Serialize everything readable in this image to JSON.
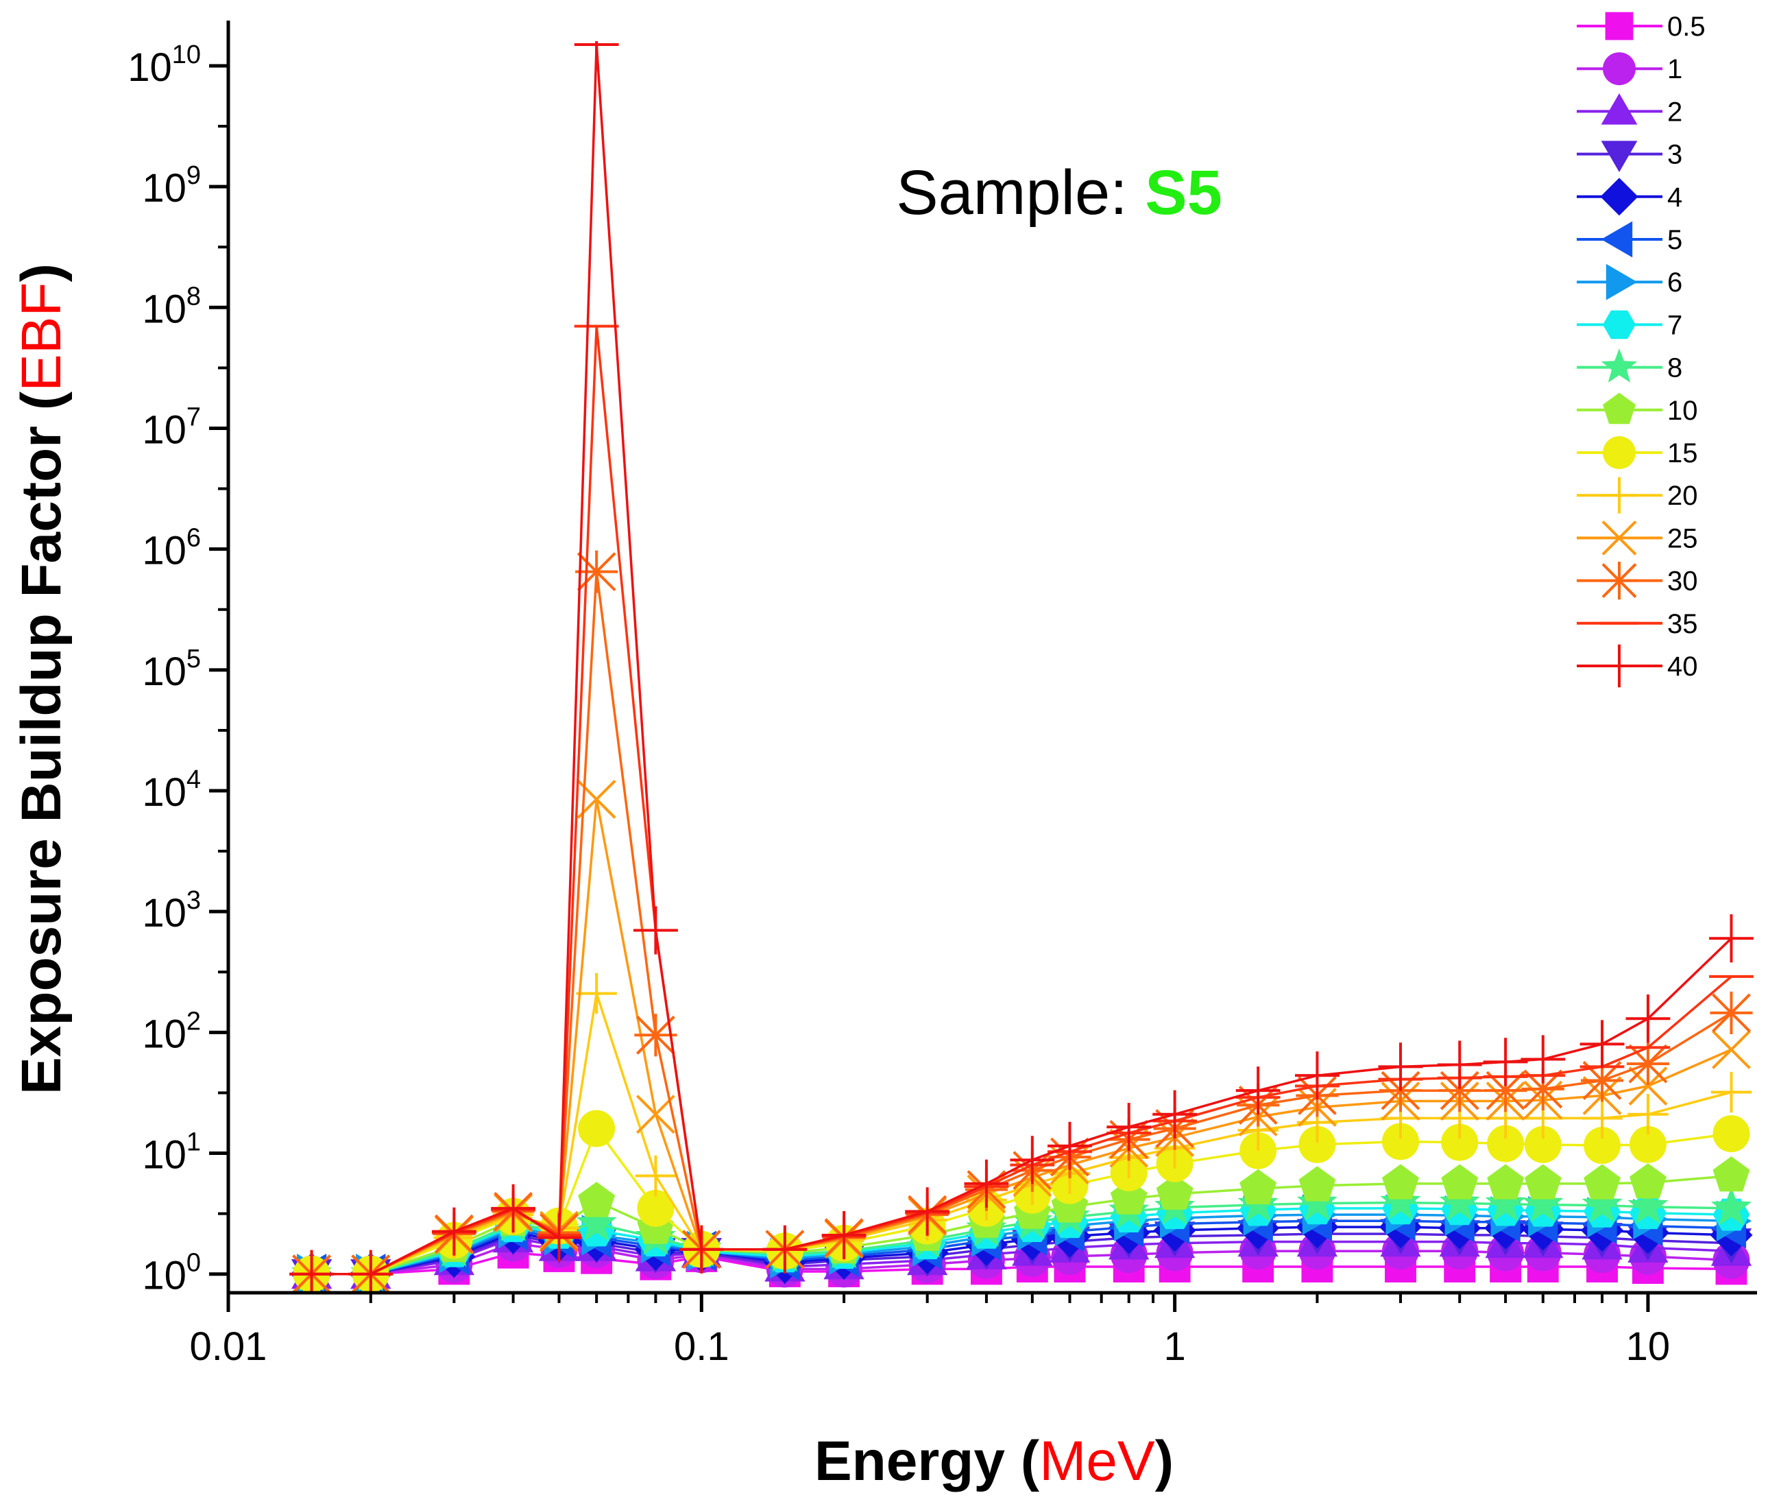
{
  "chart_data": {
    "type": "line",
    "title": "",
    "annotation": {
      "prefix": "Sample: ",
      "value": "S5",
      "value_color": "#22ee11"
    },
    "xlabel": {
      "prefix": "Energy (",
      "unit": "MeV",
      "suffix": ")",
      "unit_color": "#ff0000"
    },
    "ylabel": {
      "prefix": "Exposure Buildup Factor (",
      "unit": "EBF",
      "suffix": ")",
      "unit_color": "#ff0000"
    },
    "xscale": "log",
    "yscale": "log",
    "xlim": [
      0.01,
      17
    ],
    "ylim": [
      0.7,
      16000000000
    ],
    "x_ticks": [
      {
        "value": 0.01,
        "label": "0.01"
      },
      {
        "value": 0.1,
        "label": "0.1"
      },
      {
        "value": 1,
        "label": "1"
      },
      {
        "value": 10,
        "label": "10"
      }
    ],
    "y_ticks": [
      {
        "value": 1,
        "base": "10",
        "exp": "0"
      },
      {
        "value": 10,
        "base": "10",
        "exp": "1"
      },
      {
        "value": 100,
        "base": "10",
        "exp": "2"
      },
      {
        "value": 1000,
        "base": "10",
        "exp": "3"
      },
      {
        "value": 10000,
        "base": "10",
        "exp": "4"
      },
      {
        "value": 100000,
        "base": "10",
        "exp": "5"
      },
      {
        "value": 1000000,
        "base": "10",
        "exp": "6"
      },
      {
        "value": 10000000,
        "base": "10",
        "exp": "7"
      },
      {
        "value": 100000000,
        "base": "10",
        "exp": "8"
      },
      {
        "value": 1000000000,
        "base": "10",
        "exp": "9"
      },
      {
        "value": 10000000000,
        "base": "10",
        "exp": "10"
      }
    ],
    "grid": false,
    "legend_position": "top-right",
    "x": [
      0.015,
      0.02,
      0.03,
      0.04,
      0.05,
      0.06,
      0.08,
      0.1,
      0.15,
      0.2,
      0.3,
      0.4,
      0.5,
      0.6,
      0.8,
      1,
      1.5,
      2,
      3,
      4,
      5,
      6,
      8,
      10,
      15
    ],
    "series": [
      {
        "name": "0.5",
        "color": "#ee11ee",
        "marker": "square",
        "values": [
          1.0,
          1.0,
          1.1,
          1.5,
          1.4,
          1.35,
          1.2,
          1.4,
          1.05,
          1.05,
          1.1,
          1.1,
          1.15,
          1.15,
          1.15,
          1.15,
          1.15,
          1.15,
          1.15,
          1.15,
          1.15,
          1.15,
          1.15,
          1.12,
          1.1
        ]
      },
      {
        "name": "1",
        "color": "#bb22ee",
        "marker": "circle",
        "values": [
          1.0,
          1.0,
          1.2,
          1.8,
          1.6,
          1.6,
          1.3,
          1.45,
          1.1,
          1.1,
          1.2,
          1.3,
          1.35,
          1.4,
          1.45,
          1.5,
          1.55,
          1.55,
          1.55,
          1.55,
          1.5,
          1.5,
          1.45,
          1.4,
          1.3
        ]
      },
      {
        "name": "2",
        "color": "#8822ee",
        "marker": "triangle-up",
        "values": [
          1.0,
          1.0,
          1.3,
          2.0,
          1.7,
          1.7,
          1.4,
          1.5,
          1.15,
          1.2,
          1.3,
          1.45,
          1.55,
          1.65,
          1.75,
          1.8,
          1.85,
          1.85,
          1.85,
          1.85,
          1.8,
          1.8,
          1.75,
          1.65,
          1.55
        ]
      },
      {
        "name": "3",
        "color": "#5522dd",
        "marker": "triangle-down",
        "values": [
          1.0,
          1.0,
          1.35,
          2.1,
          1.8,
          1.8,
          1.5,
          1.5,
          1.2,
          1.3,
          1.4,
          1.6,
          1.75,
          1.85,
          2.0,
          2.05,
          2.1,
          2.15,
          2.15,
          2.1,
          2.1,
          2.05,
          2.0,
          1.9,
          1.8
        ]
      },
      {
        "name": "4",
        "color": "#1111dd",
        "marker": "diamond",
        "values": [
          1.0,
          1.0,
          1.4,
          2.2,
          1.9,
          1.9,
          1.6,
          1.55,
          1.25,
          1.35,
          1.5,
          1.75,
          1.95,
          2.05,
          2.2,
          2.3,
          2.4,
          2.45,
          2.45,
          2.4,
          2.4,
          2.35,
          2.3,
          2.2,
          2.1
        ]
      },
      {
        "name": "5",
        "color": "#1155ee",
        "marker": "triangle-left",
        "values": [
          1.0,
          1.0,
          1.45,
          2.3,
          2.0,
          2.0,
          1.7,
          1.55,
          1.3,
          1.4,
          1.6,
          1.9,
          2.1,
          2.25,
          2.45,
          2.6,
          2.7,
          2.75,
          2.75,
          2.7,
          2.7,
          2.65,
          2.6,
          2.5,
          2.4
        ]
      },
      {
        "name": "6",
        "color": "#1199ee",
        "marker": "triangle-right",
        "values": [
          1.0,
          1.0,
          1.5,
          2.4,
          2.1,
          2.1,
          1.8,
          1.55,
          1.35,
          1.45,
          1.7,
          2.05,
          2.3,
          2.5,
          2.75,
          2.9,
          3.05,
          3.1,
          3.1,
          3.05,
          3.0,
          3.0,
          2.95,
          2.85,
          2.75
        ]
      },
      {
        "name": "7",
        "color": "#11eeee",
        "marker": "hexagon",
        "values": [
          1.0,
          1.0,
          1.55,
          2.5,
          2.2,
          2.3,
          1.9,
          1.55,
          1.4,
          1.5,
          1.8,
          2.2,
          2.5,
          2.7,
          3.0,
          3.2,
          3.4,
          3.5,
          3.5,
          3.45,
          3.4,
          3.35,
          3.3,
          3.2,
          3.1
        ]
      },
      {
        "name": "8",
        "color": "#44ee88",
        "marker": "star",
        "values": [
          1.0,
          1.0,
          1.6,
          2.6,
          2.3,
          2.6,
          2.0,
          1.6,
          1.45,
          1.55,
          1.9,
          2.35,
          2.7,
          2.95,
          3.3,
          3.55,
          3.75,
          3.85,
          3.9,
          3.85,
          3.8,
          3.75,
          3.7,
          3.6,
          3.5
        ]
      },
      {
        "name": "10",
        "color": "#99ee33",
        "marker": "pentagon",
        "values": [
          1.0,
          1.0,
          1.7,
          2.8,
          2.4,
          4.0,
          2.4,
          1.6,
          1.5,
          1.65,
          2.1,
          2.7,
          3.2,
          3.6,
          4.2,
          4.6,
          5.1,
          5.4,
          5.6,
          5.6,
          5.6,
          5.6,
          5.6,
          5.7,
          6.5
        ]
      },
      {
        "name": "15",
        "color": "#eeee11",
        "marker": "circle",
        "values": [
          1.0,
          1.0,
          1.9,
          3.0,
          2.5,
          16.0,
          3.5,
          1.6,
          1.55,
          1.8,
          2.5,
          3.5,
          4.5,
          5.4,
          6.9,
          8.2,
          10.5,
          11.8,
          12.5,
          12.3,
          12.0,
          11.8,
          11.6,
          11.8,
          14.5
        ]
      },
      {
        "name": "20",
        "color": "#ffcc11",
        "marker": "plus",
        "values": [
          1.0,
          1.0,
          2.0,
          3.1,
          2.4,
          210,
          6.5,
          1.6,
          1.6,
          1.9,
          2.8,
          4.1,
          5.5,
          6.8,
          9.2,
          11.0,
          15.5,
          18.0,
          19.5,
          19.5,
          19.5,
          19.5,
          19.5,
          21.0,
          32.0
        ]
      },
      {
        "name": "25",
        "color": "#ff9911",
        "marker": "cross",
        "values": [
          1.0,
          1.0,
          2.1,
          3.2,
          2.3,
          8500,
          21.0,
          1.6,
          1.6,
          1.95,
          3.0,
          4.6,
          6.3,
          8.0,
          11.0,
          13.5,
          20.0,
          24.0,
          27.0,
          27.0,
          27.0,
          27.5,
          30.0,
          36.0,
          72.0
        ]
      },
      {
        "name": "30",
        "color": "#ff6611",
        "marker": "asterisk",
        "values": [
          1.0,
          1.0,
          2.15,
          3.3,
          2.2,
          650000,
          95.0,
          1.6,
          1.6,
          2.0,
          3.1,
          5.0,
          7.2,
          9.3,
          13.0,
          16.0,
          25.0,
          30.0,
          33.0,
          33.0,
          33.0,
          34.0,
          40.0,
          55.0,
          145.0
        ]
      },
      {
        "name": "35",
        "color": "#ff3311",
        "marker": "hline",
        "values": [
          1.0,
          1.0,
          2.2,
          3.4,
          2.1,
          70000000,
          700,
          1.6,
          1.6,
          2.05,
          3.2,
          5.3,
          8.0,
          10.3,
          14.7,
          18.5,
          29.0,
          36.0,
          41.0,
          42.0,
          43.0,
          44.0,
          52.0,
          75.0,
          290.0
        ]
      },
      {
        "name": "40",
        "color": "#ee1111",
        "marker": "vline",
        "values": [
          1.0,
          1.0,
          2.25,
          3.5,
          2.0,
          15000000000,
          700,
          1.6,
          1.6,
          2.1,
          3.3,
          5.6,
          8.8,
          11.5,
          16.5,
          21.0,
          33.0,
          44.0,
          52.0,
          54.0,
          57.0,
          60.0,
          80.0,
          130.0,
          600.0
        ]
      }
    ]
  }
}
